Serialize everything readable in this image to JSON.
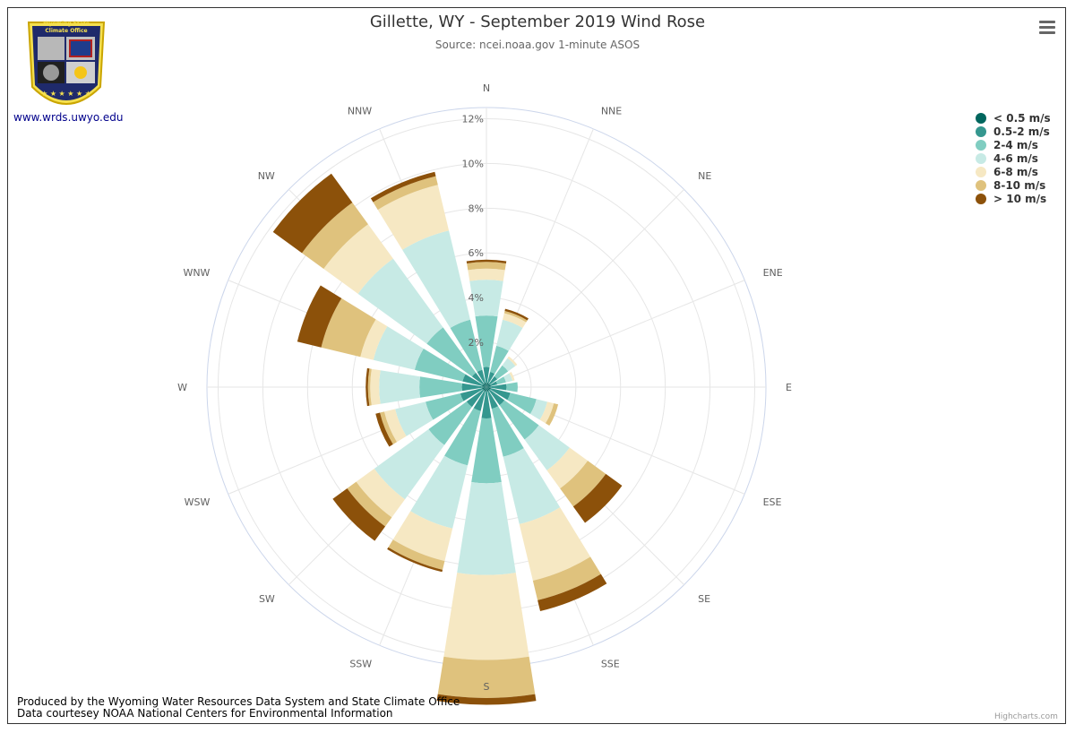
{
  "header": {
    "title": "Gillette, WY - September 2019 Wind Rose",
    "subtitle": "Source: ncei.noaa.gov 1-minute ASOS"
  },
  "logo": {
    "text_line1": "Wyoming State",
    "text_line2": "Climate Office",
    "link_text": "www.wrds.uwyo.edu"
  },
  "menu": {
    "icon": "hamburger-menu-icon"
  },
  "footer": {
    "line1": "Produced by the Wyoming Water Resources Data System and State Climate Office",
    "line2": "Data courtesey NOAA National Centers for Environmental Information"
  },
  "credits": "Highcharts.com",
  "colors": {
    "grid": "#e6e6e6",
    "outer_ring": "#ccd6eb"
  },
  "chart_data": {
    "type": "windrose",
    "title": "Gillette, WY - September 2019 Wind Rose",
    "subtitle": "Source: ncei.noaa.gov 1-minute ASOS",
    "categories": [
      "N",
      "NNE",
      "NE",
      "ENE",
      "E",
      "ESE",
      "SE",
      "SSE",
      "S",
      "SSW",
      "SW",
      "WSW",
      "W",
      "WNW",
      "NW",
      "NNW"
    ],
    "radial_ticks": [
      "2%",
      "4%",
      "6%",
      "8%",
      "10%",
      "12%"
    ],
    "radial_tick_values": [
      2,
      4,
      6,
      8,
      10,
      12
    ],
    "rmax": 12.5,
    "stacked": true,
    "legend_position": "top-right",
    "series": [
      {
        "name": "< 0.5 m/s",
        "color": "#01665e",
        "values": [
          0.2,
          0.2,
          0.2,
          0.2,
          0.2,
          0.2,
          0.2,
          0.2,
          0.2,
          0.2,
          0.2,
          0.2,
          0.2,
          0.2,
          0.2,
          0.2
        ]
      },
      {
        "name": "0.5-2 m/s",
        "color": "#35978f",
        "values": [
          0.7,
          0.5,
          0.4,
          0.3,
          0.7,
          0.9,
          0.8,
          0.8,
          1.2,
          0.9,
          0.9,
          1.0,
          0.9,
          0.9,
          0.6,
          0.6
        ]
      },
      {
        "name": "2-4 m/s",
        "color": "#80cdc1",
        "values": [
          2.3,
          1.2,
          0.6,
          0.4,
          0.5,
          1.2,
          1.9,
          2.2,
          2.9,
          2.5,
          2.1,
          1.6,
          1.9,
          2.2,
          2.5,
          2.3
        ]
      },
      {
        "name": "4-6 m/s",
        "color": "#c7eae5",
        "values": [
          1.6,
          1.2,
          0.4,
          0.3,
          0.0,
          0.5,
          1.7,
          3.1,
          4.1,
          2.9,
          3.0,
          1.4,
          1.8,
          1.9,
          3.8,
          4.1
        ]
      },
      {
        "name": "6-8 m/s",
        "color": "#f6e8c3",
        "values": [
          0.5,
          0.3,
          0.1,
          0.1,
          0.0,
          0.3,
          1.0,
          2.6,
          3.8,
          1.5,
          1.0,
          0.5,
          0.4,
          0.6,
          1.9,
          2.1
        ]
      },
      {
        "name": "8-10 m/s",
        "color": "#dfc27d",
        "values": [
          0.3,
          0.1,
          0.0,
          0.0,
          0.0,
          0.2,
          1.0,
          0.9,
          1.7,
          0.4,
          0.5,
          0.2,
          0.1,
          1.8,
          1.2,
          0.4
        ]
      },
      {
        "name": "> 10 m/s",
        "color": "#8c510a",
        "values": [
          0.1,
          0.1,
          0.0,
          0.0,
          0.0,
          0.0,
          0.9,
          0.5,
          0.3,
          0.1,
          0.8,
          0.2,
          0.1,
          1.1,
          1.6,
          0.2
        ]
      }
    ]
  }
}
